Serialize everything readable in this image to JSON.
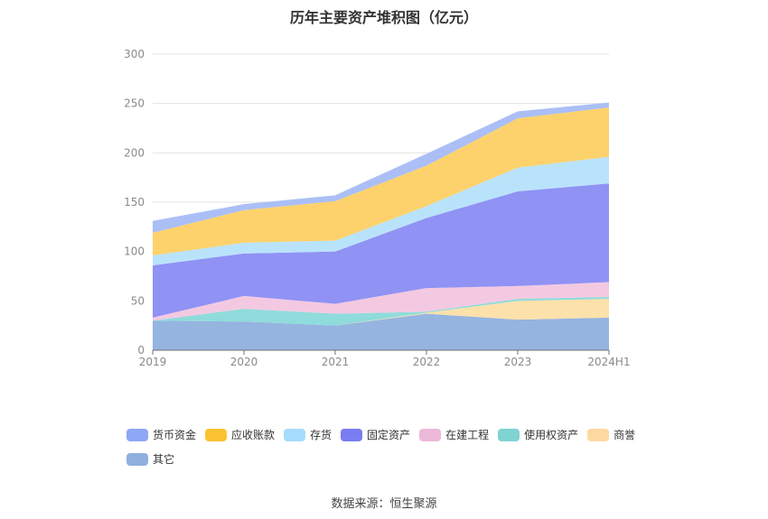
{
  "chart_data": {
    "type": "area",
    "stacked": true,
    "title": "历年主要资产堆积图（亿元）",
    "categories": [
      "2019",
      "2020",
      "2021",
      "2022",
      "2023",
      "2024H1"
    ],
    "ylim": [
      0,
      300
    ],
    "yticks": [
      0,
      50,
      100,
      150,
      200,
      250,
      300
    ],
    "grid": true,
    "legend_position": "bottom-left",
    "series": [
      {
        "name": "其它",
        "color": "#8fb0de",
        "values": [
          30,
          29,
          25,
          37,
          31,
          33
        ]
      },
      {
        "name": "商誉",
        "color": "#fddfa5",
        "values": [
          0,
          0,
          0,
          1,
          19,
          19
        ]
      },
      {
        "name": "使用权资产",
        "color": "#8ad9d9",
        "values": [
          0,
          13,
          12,
          1,
          2,
          2
        ]
      },
      {
        "name": "在建工程",
        "color": "#f2c6e0",
        "values": [
          3,
          13,
          10,
          24,
          13,
          15
        ]
      },
      {
        "name": "固定资产",
        "color": "#8a8cf3",
        "values": [
          53,
          43,
          53,
          71,
          96,
          100
        ]
      },
      {
        "name": "存货",
        "color": "#b5e2fb",
        "values": [
          10,
          11,
          11,
          12,
          24,
          27
        ]
      },
      {
        "name": "应收账款",
        "color": "#fdd064",
        "values": [
          23,
          33,
          40,
          41,
          50,
          50
        ]
      },
      {
        "name": "货币资金",
        "color": "#a7bcf6",
        "values": [
          12,
          6,
          6,
          12,
          7,
          5
        ]
      }
    ]
  },
  "legend": {
    "items": [
      {
        "label": "货币资金",
        "color": "#8ea8f5"
      },
      {
        "label": "应收账款",
        "color": "#fbc232"
      },
      {
        "label": "存货",
        "color": "#a6dcfb"
      },
      {
        "label": "固定资产",
        "color": "#7a7cf2"
      },
      {
        "label": "在建工程",
        "color": "#ecb8d8"
      },
      {
        "label": "使用权资产",
        "color": "#7fd3d3"
      },
      {
        "label": "商誉",
        "color": "#fdd9a0"
      },
      {
        "label": "其它",
        "color": "#8fb0de"
      }
    ]
  },
  "source": "数据来源：恒生聚源"
}
